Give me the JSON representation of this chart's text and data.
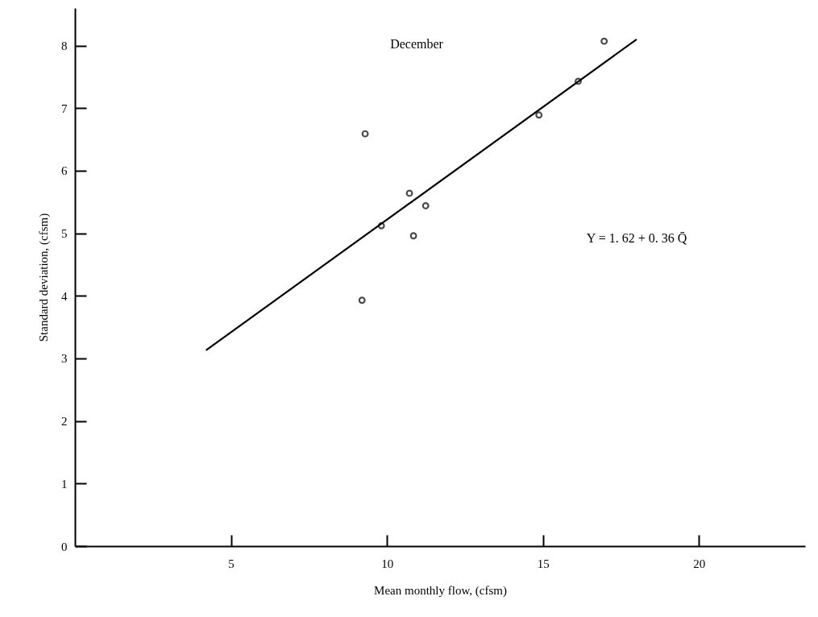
{
  "chart_data": {
    "type": "scatter",
    "xlabel": "Mean monthly flow, (cfsm)",
    "ylabel": "Standard deviation, (cfsm)",
    "xlim": [
      0,
      23.4
    ],
    "ylim": [
      0,
      8.6
    ],
    "xticks": [
      5,
      10,
      15,
      20
    ],
    "yticks": [
      0,
      1,
      2,
      3,
      4,
      5,
      6,
      7,
      8
    ],
    "grid": false,
    "series": [
      {
        "marker": "circle",
        "color": "#000000",
        "x": [
          9.2,
          9.3,
          9.82,
          10.72,
          10.85,
          11.24,
          14.87,
          16.13,
          16.96
        ],
        "values": [
          3.93,
          6.59,
          5.12,
          5.64,
          4.96,
          5.44,
          6.89,
          7.43,
          8.07
        ]
      },
      {
        "type": "line",
        "color": "#000000",
        "line_style": "solid",
        "x": [
          4.2,
          18
        ],
        "values": [
          3.13,
          8.1
        ]
      }
    ],
    "annotations": [
      "December",
      "Y = 1. 62 + 0. 36 Q̄"
    ]
  }
}
